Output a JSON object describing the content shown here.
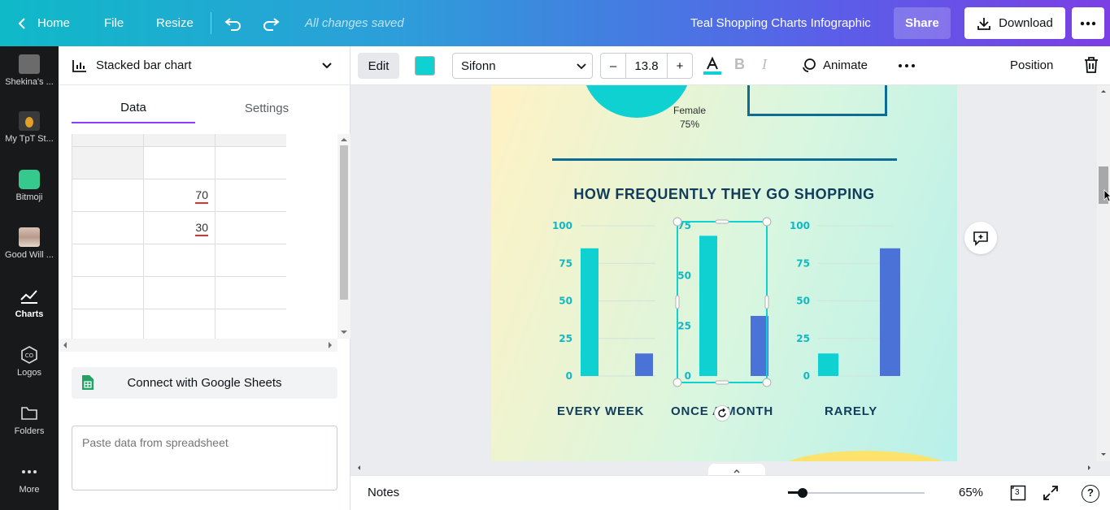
{
  "topbar": {
    "home": "Home",
    "file": "File",
    "resize": "Resize",
    "status": "All changes saved",
    "doc_title": "Teal Shopping Charts Infographic",
    "share": "Share",
    "download": "Download"
  },
  "rail": [
    {
      "label": "Shekina's ...",
      "icon": "folder-thumbnail",
      "color": "#6b6b6b"
    },
    {
      "label": "My TpT St...",
      "icon": "pineapple-thumbnail",
      "color": "#3a3a3a"
    },
    {
      "label": "Bitmoji",
      "icon": "bitmoji-icon",
      "color": "#36c98e"
    },
    {
      "label": "Good Will ...",
      "icon": "folder-thumbnail",
      "color": "#b79a8a"
    },
    {
      "label": "Charts",
      "icon": "chart-line-icon"
    },
    {
      "label": "Logos",
      "icon": "logos-icon"
    },
    {
      "label": "Folders",
      "icon": "folder-icon"
    },
    {
      "label": "More",
      "icon": "more-dots-icon"
    }
  ],
  "panel": {
    "chart_type": "Stacked bar chart",
    "tabs": {
      "data": "Data",
      "settings": "Settings"
    },
    "rows": [
      [
        "",
        "",
        ""
      ],
      [
        "",
        "70",
        ""
      ],
      [
        "",
        "30",
        ""
      ],
      [
        "",
        "",
        ""
      ],
      [
        "",
        "",
        ""
      ],
      [
        "",
        "",
        ""
      ]
    ],
    "google_sheets": "Connect with Google Sheets",
    "paste_placeholder": "Paste data from spreadsheet"
  },
  "toolbar": {
    "edit": "Edit",
    "text_color": "#10d1d2",
    "font": "Sifonn",
    "font_size": "13.8",
    "minus": "–",
    "plus": "+",
    "animate": "Animate",
    "position": "Position"
  },
  "design": {
    "pie_label": "Female",
    "pie_value": "75%",
    "heading": "HOW FREQUENTLY THEY GO SHOPPING",
    "colors": {
      "teal": "#10d1d2",
      "blue": "#4b72d6",
      "navy": "#0d6c94"
    }
  },
  "chart_data": [
    {
      "type": "bar",
      "categories": [
        "EVERY WEEK"
      ],
      "series": [
        {
          "values": [
            85
          ]
        },
        {
          "values": [
            15
          ]
        }
      ],
      "yticks": [
        "100",
        "75",
        "50",
        "25",
        "0"
      ],
      "ylim": [
        0,
        100
      ]
    },
    {
      "type": "bar",
      "categories": [
        "ONCE A MONTH"
      ],
      "series": [
        {
          "values": [
            70
          ]
        },
        {
          "values": [
            30
          ]
        }
      ],
      "yticks": [
        "75",
        "50",
        "25",
        "0"
      ],
      "ylim": [
        0,
        75
      ]
    },
    {
      "type": "bar",
      "categories": [
        "RARELY"
      ],
      "series": [
        {
          "values": [
            15
          ]
        },
        {
          "values": [
            85
          ]
        }
      ],
      "yticks": [
        "100",
        "75",
        "50",
        "25",
        "0"
      ],
      "ylim": [
        0,
        100
      ]
    }
  ],
  "bottombar": {
    "notes": "Notes",
    "zoom": "65%",
    "pages": "3"
  }
}
